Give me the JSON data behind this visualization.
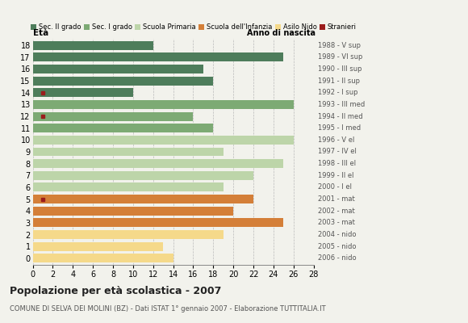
{
  "ages": [
    18,
    17,
    16,
    15,
    14,
    13,
    12,
    11,
    10,
    9,
    8,
    7,
    6,
    5,
    4,
    3,
    2,
    1,
    0
  ],
  "years": [
    "1988 - V sup",
    "1989 - VI sup",
    "1990 - III sup",
    "1991 - II sup",
    "1992 - I sup",
    "1993 - III med",
    "1994 - II med",
    "1995 - I med",
    "1996 - V el",
    "1997 - IV el",
    "1998 - III el",
    "1999 - II el",
    "2000 - I el",
    "2001 - mat",
    "2002 - mat",
    "2003 - mat",
    "2004 - nido",
    "2005 - nido",
    "2006 - nido"
  ],
  "values": [
    12,
    25,
    17,
    18,
    10,
    26,
    16,
    18,
    26,
    19,
    25,
    22,
    19,
    22,
    20,
    25,
    19,
    13,
    14
  ],
  "stranieri": [
    0,
    0,
    0,
    0,
    1,
    0,
    1,
    0,
    0,
    0,
    0,
    0,
    0,
    1,
    0,
    0,
    0,
    0,
    0
  ],
  "stranieri_vals": [
    0,
    0,
    0,
    0,
    1,
    0,
    1,
    0,
    0,
    0,
    0,
    0,
    0,
    1,
    0,
    0,
    0,
    0,
    0
  ],
  "categories": [
    "Sec. II grado",
    "Sec. I grado",
    "Scuola Primaria",
    "Scuola dell'Infanzia",
    "Asilo Nido"
  ],
  "colors": {
    "Sec. II grado": "#4e7d5b",
    "Sec. I grado": "#7daa74",
    "Scuola Primaria": "#bdd5a9",
    "Scuola dell'Infanzia": "#d47f38",
    "Asilo Nido": "#f5d98a"
  },
  "bar_colors_by_age": {
    "18": "#4e7d5b",
    "17": "#4e7d5b",
    "16": "#4e7d5b",
    "15": "#4e7d5b",
    "14": "#4e7d5b",
    "13": "#7daa74",
    "12": "#7daa74",
    "11": "#7daa74",
    "10": "#bdd5a9",
    "9": "#bdd5a9",
    "8": "#bdd5a9",
    "7": "#bdd5a9",
    "6": "#bdd5a9",
    "5": "#d47f38",
    "4": "#d47f38",
    "3": "#d47f38",
    "2": "#f5d98a",
    "1": "#f5d98a",
    "0": "#f5d98a"
  },
  "stranieri_color": "#9b1c1c",
  "title": "Popolazione per età scolastica - 2007",
  "subtitle": "COMUNE DI SELVA DEI MOLINI (BZ) - Dati ISTAT 1° gennaio 2007 - Elaborazione TUTTITALIA.IT",
  "xlabel_left": "Età",
  "xlabel_right": "Anno di nascita",
  "xlim": [
    0,
    28
  ],
  "xticks": [
    0,
    2,
    4,
    6,
    8,
    10,
    12,
    14,
    16,
    18,
    20,
    22,
    24,
    26,
    28
  ],
  "bg_color": "#f2f2ec",
  "bar_height": 0.75
}
